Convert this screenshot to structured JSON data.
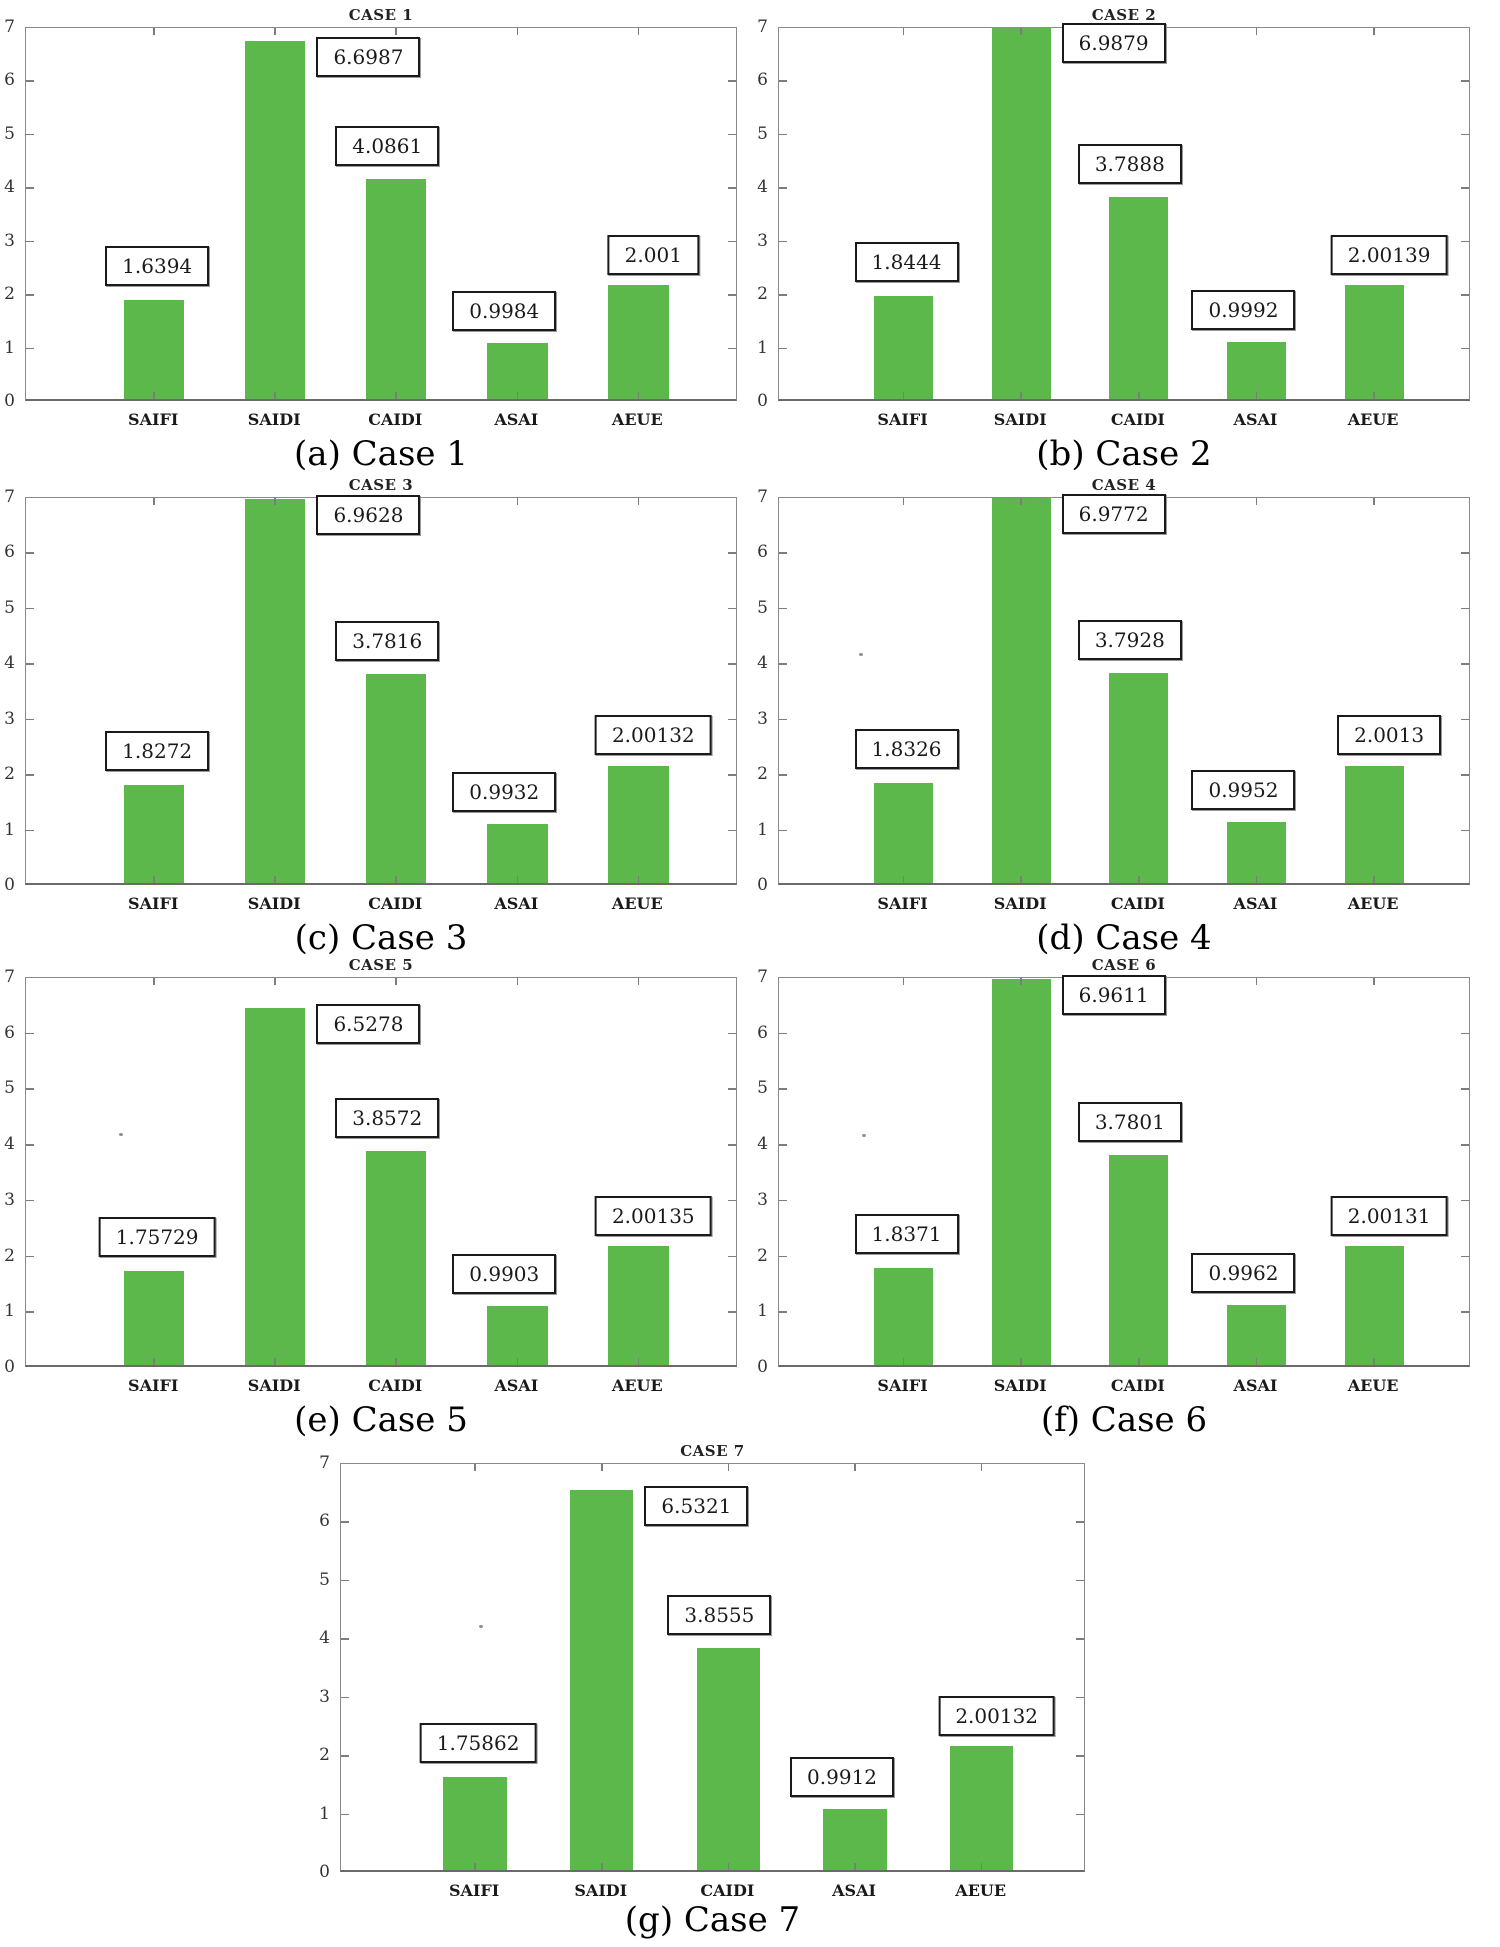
{
  "figure": {
    "type": "figure-grid",
    "categories": [
      "SAIFI",
      "SAIDI",
      "CAIDI",
      "ASAI",
      "AEUE"
    ],
    "y_tick_labels": [
      "0",
      "1",
      "2",
      "3",
      "4",
      "5",
      "6",
      "7"
    ],
    "bar_color": "#5cb84a",
    "axis_color": "#8a8a8a",
    "value_box_border_color": "#1a1a1a",
    "value_box_background": "#ffffff"
  },
  "chart_data": [
    {
      "type": "bar",
      "title": "CASE 1",
      "caption": "(a) Case 1",
      "categories": [
        "SAIFI",
        "SAIDI",
        "CAIDI",
        "ASAI",
        "AEUE"
      ],
      "values": [
        1.6394,
        6.6987,
        4.0861,
        0.9984,
        2.001
      ],
      "labels": [
        "1.6394",
        "6.6987",
        "4.0861",
        "0.9984",
        "2.001"
      ],
      "bar_heights": [
        1.85,
        6.7,
        4.12,
        1.05,
        2.13
      ],
      "ylim": [
        0,
        7
      ],
      "xlabel": "",
      "ylabel": "",
      "grid": false,
      "legend": false
    },
    {
      "type": "bar",
      "title": "CASE 2",
      "caption": "(b) Case 2",
      "categories": [
        "SAIFI",
        "SAIDI",
        "CAIDI",
        "ASAI",
        "AEUE"
      ],
      "values": [
        1.8444,
        6.9879,
        3.7888,
        0.9992,
        2.00139
      ],
      "labels": [
        "1.8444",
        "6.9879",
        "3.7888",
        "0.9992",
        "2.00139"
      ],
      "bar_heights": [
        1.92,
        6.97,
        3.79,
        1.07,
        2.13
      ],
      "ylim": [
        0,
        7
      ],
      "xlabel": "",
      "ylabel": "",
      "grid": false,
      "legend": false
    },
    {
      "type": "bar",
      "title": "CASE 3",
      "caption": "(c) Case 3",
      "categories": [
        "SAIFI",
        "SAIDI",
        "CAIDI",
        "ASAI",
        "AEUE"
      ],
      "values": [
        1.8272,
        6.9628,
        3.7816,
        0.9932,
        2.00132
      ],
      "labels": [
        "1.8272",
        "6.9628",
        "3.7816",
        "0.9932",
        "2.00132"
      ],
      "bar_heights": [
        1.76,
        6.93,
        3.77,
        1.07,
        2.12
      ],
      "ylim": [
        0,
        7
      ],
      "xlabel": "",
      "ylabel": "",
      "grid": false,
      "legend": false
    },
    {
      "type": "bar",
      "title": "CASE 4",
      "caption": "(d) Case 4",
      "categories": [
        "SAIFI",
        "SAIDI",
        "CAIDI",
        "ASAI",
        "AEUE"
      ],
      "values": [
        1.8326,
        6.9772,
        3.7928,
        0.9952,
        2.0013
      ],
      "labels": [
        "1.8326",
        "6.9772",
        "3.7928",
        "0.9952",
        "2.0013"
      ],
      "bar_heights": [
        1.81,
        6.95,
        3.78,
        1.1,
        2.12
      ],
      "ylim": [
        0,
        7
      ],
      "xlabel": "",
      "ylabel": "",
      "grid": false,
      "legend": false
    },
    {
      "type": "bar",
      "title": "CASE 5",
      "caption": "(e) Case 5",
      "categories": [
        "SAIFI",
        "SAIDI",
        "CAIDI",
        "ASAI",
        "AEUE"
      ],
      "values": [
        1.75729,
        6.5278,
        3.8572,
        0.9903,
        2.00135
      ],
      "labels": [
        "1.75729",
        "6.5278",
        "3.8572",
        "0.9903",
        "2.00135"
      ],
      "bar_heights": [
        1.69,
        6.4,
        3.84,
        1.06,
        2.13
      ],
      "ylim": [
        0,
        7
      ],
      "xlabel": "",
      "ylabel": "",
      "grid": false,
      "legend": false
    },
    {
      "type": "bar",
      "title": "CASE 6",
      "caption": "(f) Case 6",
      "categories": [
        "SAIFI",
        "SAIDI",
        "CAIDI",
        "ASAI",
        "AEUE"
      ],
      "values": [
        1.8371,
        6.9611,
        3.7801,
        0.9962,
        2.00131
      ],
      "labels": [
        "1.8371",
        "6.9611",
        "3.7801",
        "0.9962",
        "2.00131"
      ],
      "bar_heights": [
        1.74,
        6.93,
        3.77,
        1.07,
        2.13
      ],
      "ylim": [
        0,
        7
      ],
      "xlabel": "",
      "ylabel": "",
      "grid": false,
      "legend": false
    },
    {
      "type": "bar",
      "title": "CASE 7",
      "caption": "(g) Case 7",
      "categories": [
        "SAIFI",
        "SAIDI",
        "CAIDI",
        "ASAI",
        "AEUE"
      ],
      "values": [
        1.75862,
        6.5321,
        3.8555,
        0.9912,
        2.00132
      ],
      "labels": [
        "1.75862",
        "6.5321",
        "3.8555",
        "0.9912",
        "2.00132"
      ],
      "bar_heights": [
        1.6,
        6.5,
        3.8,
        1.04,
        2.13
      ],
      "ylim": [
        0,
        7
      ],
      "xlabel": "",
      "ylabel": "",
      "grid": false,
      "legend": false
    }
  ]
}
